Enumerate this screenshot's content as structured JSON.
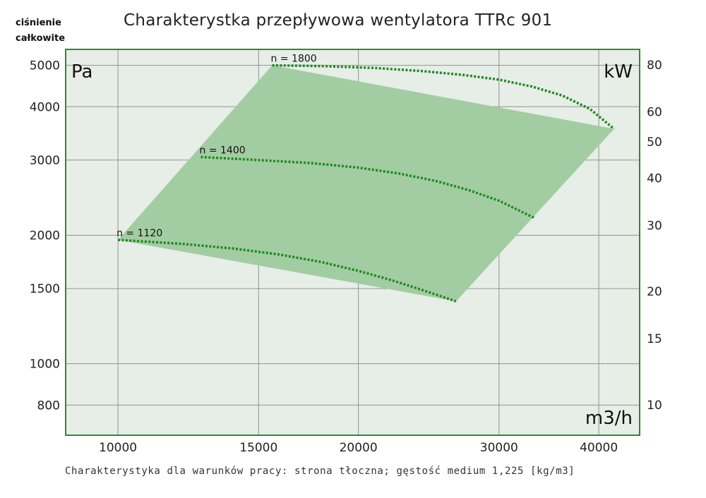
{
  "header": {
    "corner_label_line1": "ciśnienie",
    "corner_label_line2": "całkowite",
    "title": "Charakterystka przepływowa wentylatora TTRc 901"
  },
  "footer": {
    "note": "Charakterystyka dla warunków pracy: strona tłoczna; gęstość medium 1,225 [kg/m3]"
  },
  "chart_data": {
    "type": "line",
    "title": "Charakterystka przepływowa wentylatora TTRc 901",
    "y_unit": "Pa",
    "y2_unit": "kW",
    "x_unit": "m3/h",
    "x_scale": "log",
    "y_scale": "log",
    "y2_scale": "log",
    "xlim": [
      8600,
      45000
    ],
    "ylim": [
      680,
      5450
    ],
    "y2lim": [
      8.3,
      88
    ],
    "x_ticks": [
      10000,
      15000,
      20000,
      30000,
      40000
    ],
    "x_tick_labels": [
      "10000",
      "15000",
      "20000",
      "30000",
      "40000"
    ],
    "y_ticks": [
      800,
      1000,
      1500,
      2000,
      3000,
      4000,
      5000
    ],
    "y_tick_labels": [
      "800",
      "1000",
      "1500",
      "2000",
      "3000",
      "4000",
      "5000"
    ],
    "y2_ticks": [
      10,
      15,
      20,
      30,
      40,
      50,
      60,
      80
    ],
    "y2_tick_labels": [
      "10",
      "15",
      "20",
      "30",
      "40",
      "50",
      "60",
      "80"
    ],
    "grid": true,
    "colors": {
      "plot_background": "#e7ede7",
      "frame": "#2f8a2f",
      "grid": "#8f968f",
      "region_fill": "#a2cda2",
      "curve": "#1f8a1f"
    },
    "region": {
      "description": "operating area",
      "x": [
        10000,
        15600,
        41800,
        26500
      ],
      "y": [
        1950,
        5000,
        3550,
        1400
      ]
    },
    "series": [
      {
        "name": "n = 1120",
        "x": [
          10000,
          12000,
          14000,
          16000,
          18000,
          20000,
          22000,
          24000,
          26500
        ],
        "y": [
          1950,
          1910,
          1860,
          1800,
          1730,
          1650,
          1570,
          1490,
          1400
        ]
      },
      {
        "name": "n = 1400",
        "x": [
          12700,
          15000,
          17500,
          20000,
          22500,
          25000,
          27500,
          30000,
          33300
        ],
        "y": [
          3050,
          3000,
          2950,
          2880,
          2790,
          2680,
          2550,
          2410,
          2190
        ]
      },
      {
        "name": "n = 1800",
        "x": [
          15600,
          18000,
          21000,
          24000,
          27000,
          30000,
          33000,
          36000,
          39000,
          41800
        ],
        "y": [
          5000,
          4980,
          4930,
          4850,
          4750,
          4630,
          4460,
          4250,
          3950,
          3550
        ]
      }
    ]
  }
}
